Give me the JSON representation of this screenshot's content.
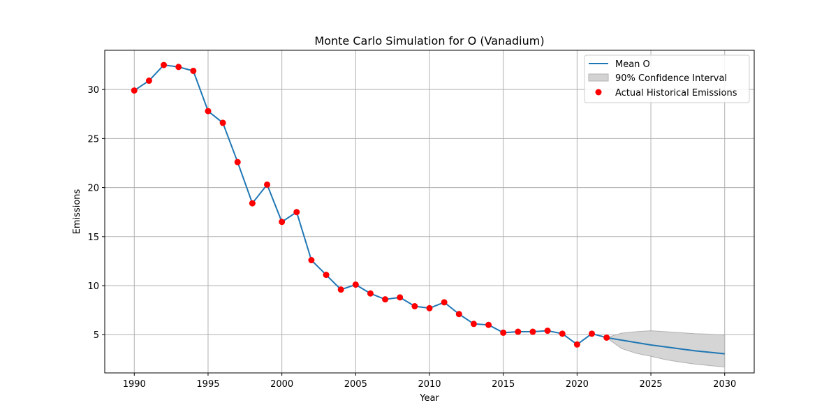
{
  "chart_data": {
    "type": "line",
    "title": "Monte Carlo Simulation for O (Vanadium)",
    "xlabel": "Year",
    "ylabel": "Emissions",
    "xlim": [
      1988,
      2032
    ],
    "ylim": [
      1.1,
      34.0
    ],
    "xticks": [
      1990,
      1995,
      2000,
      2005,
      2010,
      2015,
      2020,
      2025,
      2030
    ],
    "yticks": [
      5,
      10,
      15,
      20,
      25,
      30
    ],
    "grid": true,
    "legend_position": "top-right",
    "colors": {
      "mean_line": "#1f77b4",
      "historical_points": "#ff0000",
      "confidence_fill": "#d3d3d3",
      "confidence_edge": "#b0b0b0"
    },
    "legend": {
      "mean_label": "Mean O",
      "interval_label": "90% Confidence Interval",
      "historical_label": "Actual Historical Emissions"
    },
    "historical": {
      "x": [
        1990,
        1991,
        1992,
        1993,
        1994,
        1995,
        1996,
        1997,
        1998,
        1999,
        2000,
        2001,
        2002,
        2003,
        2004,
        2005,
        2006,
        2007,
        2008,
        2009,
        2010,
        2011,
        2012,
        2013,
        2014,
        2015,
        2016,
        2017,
        2018,
        2019,
        2020,
        2021,
        2022
      ],
      "y": [
        29.9,
        30.9,
        32.5,
        32.3,
        31.9,
        27.8,
        26.6,
        22.6,
        18.4,
        20.3,
        16.5,
        17.5,
        12.6,
        11.1,
        9.6,
        10.1,
        9.2,
        8.6,
        8.8,
        7.9,
        7.7,
        8.3,
        7.1,
        6.1,
        6.0,
        5.2,
        5.3,
        5.3,
        5.4,
        5.1,
        4.0,
        5.1,
        4.7
      ]
    },
    "mean_forecast": {
      "x": [
        2022,
        2023,
        2024,
        2025,
        2026,
        2027,
        2028,
        2029,
        2030
      ],
      "y": [
        4.7,
        4.45,
        4.2,
        3.95,
        3.75,
        3.55,
        3.35,
        3.2,
        3.05
      ]
    },
    "confidence_interval": {
      "x": [
        2022,
        2023,
        2024,
        2025,
        2026,
        2027,
        2028,
        2029,
        2030
      ],
      "lower": [
        4.7,
        3.6,
        3.1,
        2.8,
        2.45,
        2.2,
        2.0,
        1.85,
        1.7
      ],
      "upper": [
        4.7,
        5.15,
        5.3,
        5.4,
        5.3,
        5.2,
        5.1,
        5.05,
        4.95
      ]
    }
  }
}
